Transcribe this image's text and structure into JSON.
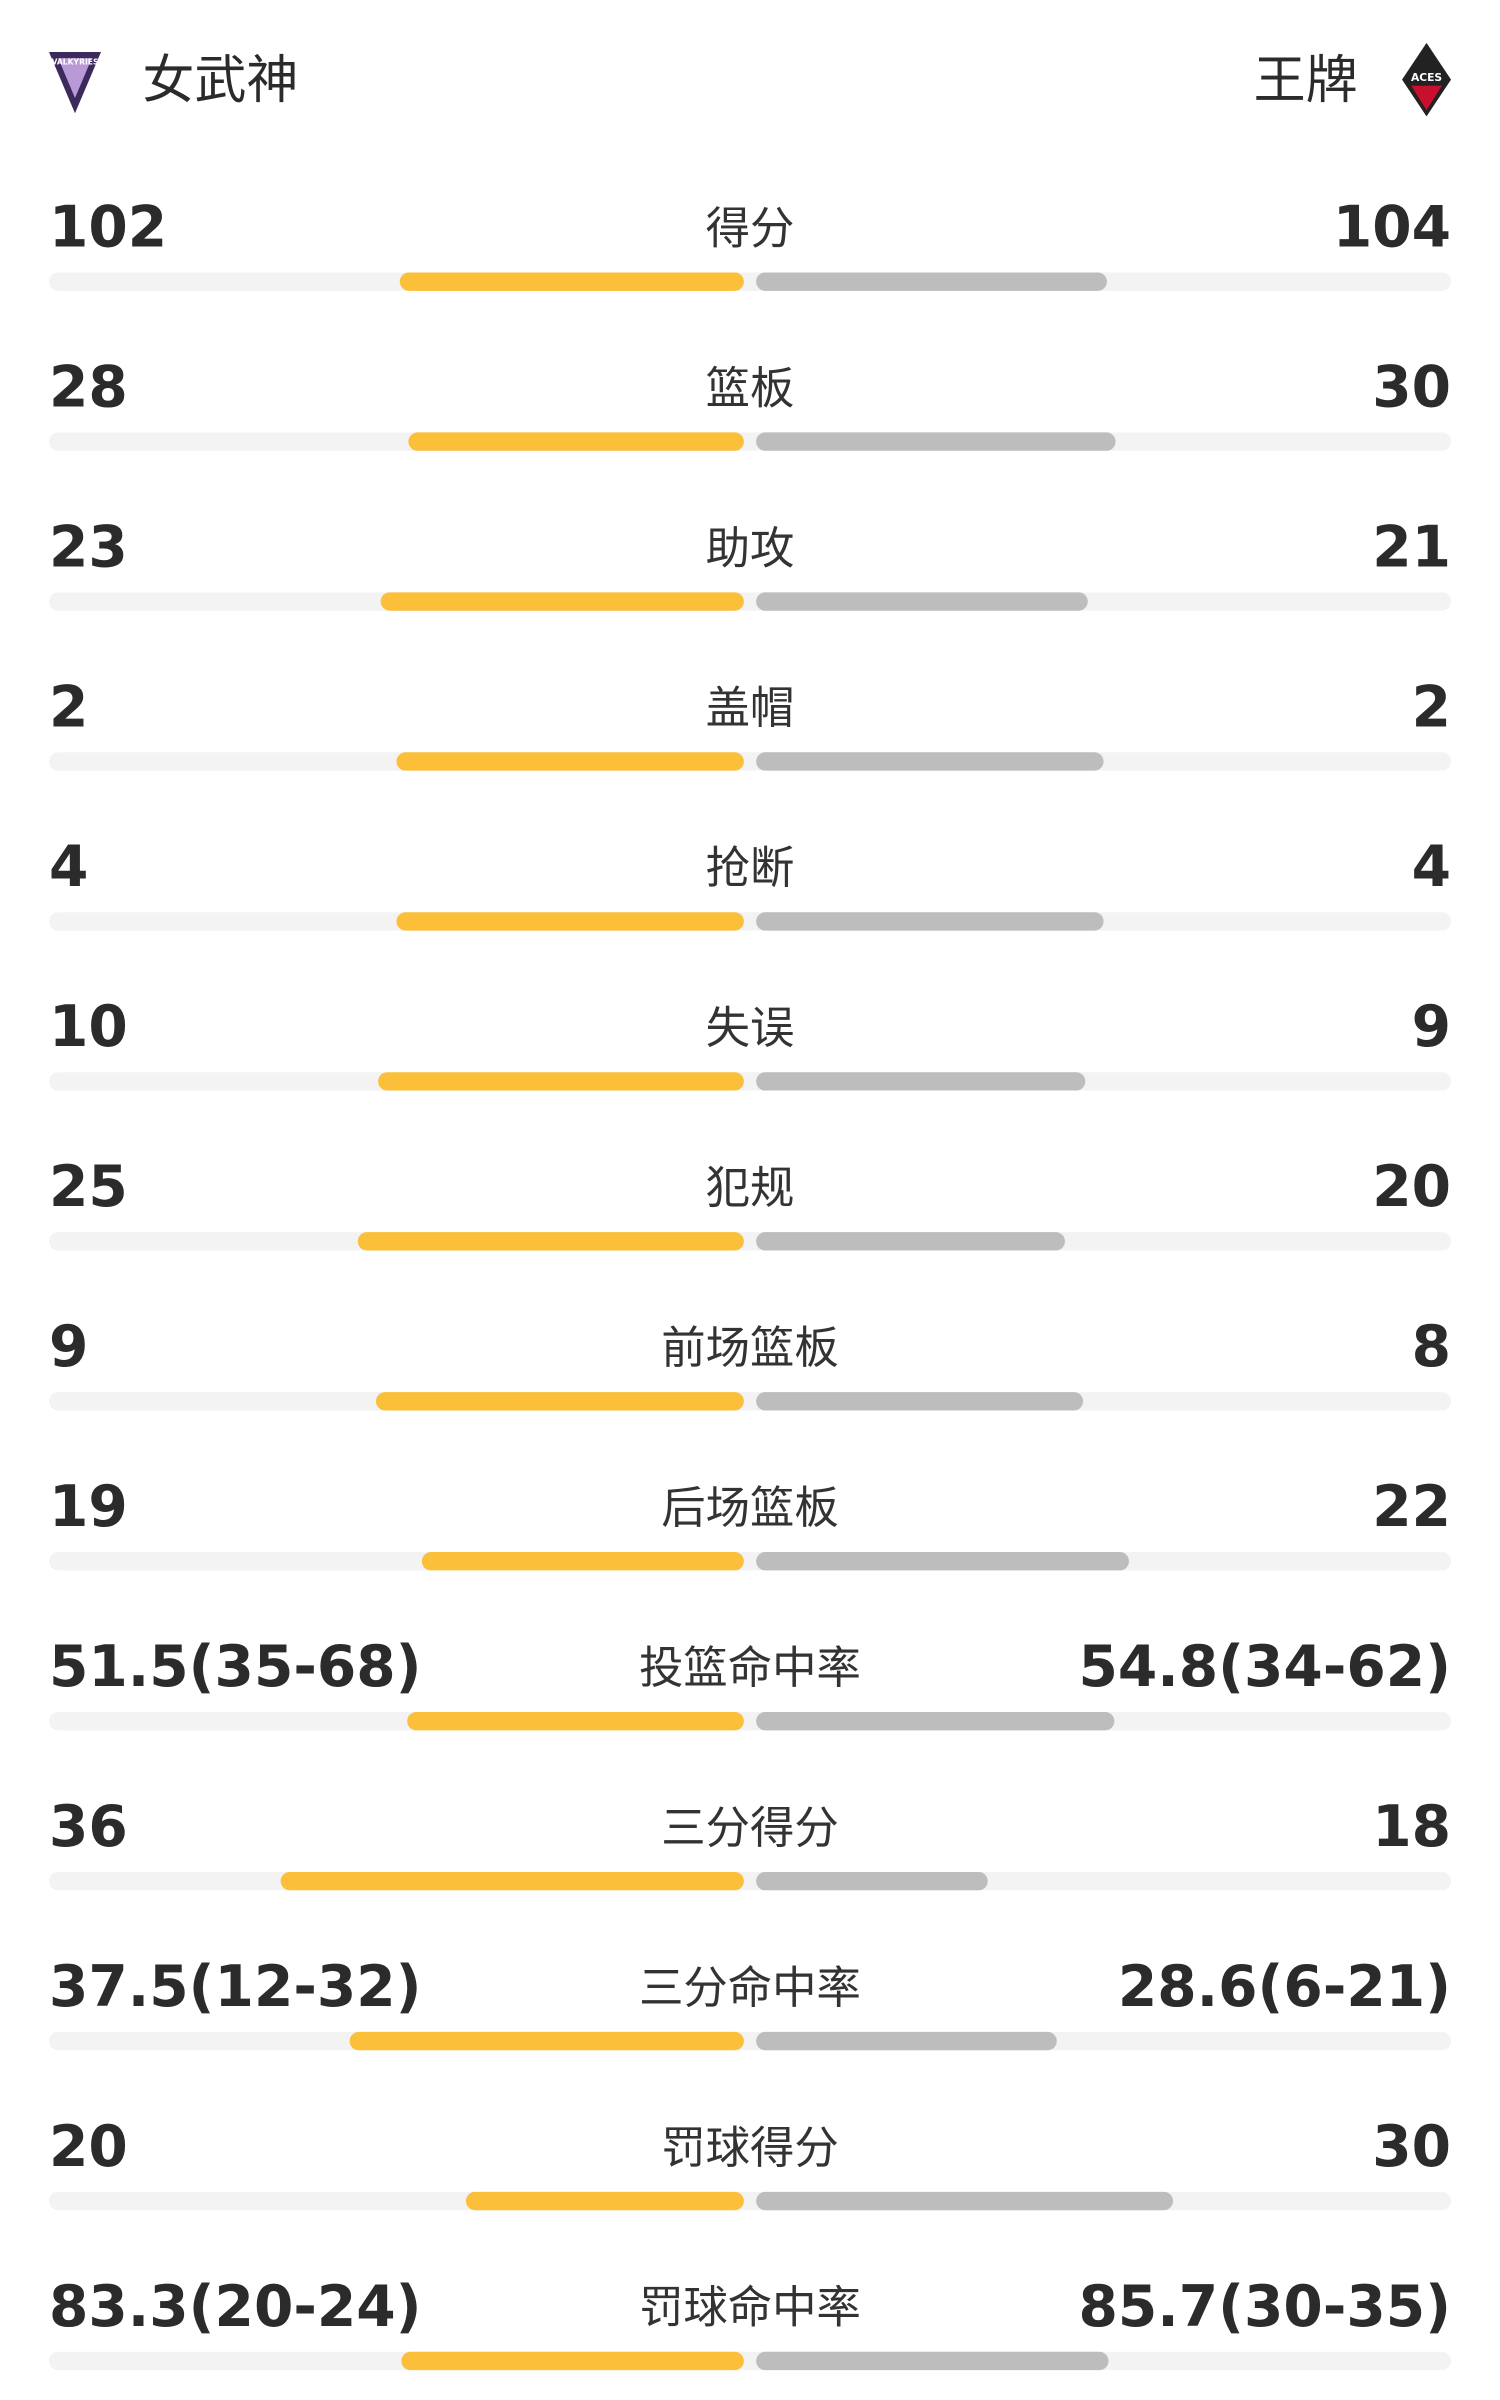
{
  "header": {
    "home_team": "女武神",
    "away_team": "王牌",
    "home_logo_text": "VALKYRIES",
    "away_logo_text": "ACES"
  },
  "stats": {
    "home_color": "#fbbf3a",
    "away_color": "#bdbdbd",
    "track_color": "#f3f3f3",
    "rows": [
      {
        "label": "得分",
        "home": 102,
        "away": 104
      },
      {
        "label": "篮板",
        "home": 28,
        "away": 30
      },
      {
        "label": "助攻",
        "home": 23,
        "away": 21
      },
      {
        "label": "盖帽",
        "home": 2,
        "away": 2
      },
      {
        "label": "抢断",
        "home": 4,
        "away": 4
      },
      {
        "label": "失误",
        "home": 10,
        "away": 9
      },
      {
        "label": "犯规",
        "home": 25,
        "away": 20
      },
      {
        "label": "前场篮板",
        "home": 9,
        "away": 8
      },
      {
        "label": "后场篮板",
        "home": 19,
        "away": 22
      },
      {
        "label": "投篮命中率",
        "home": 51.5,
        "home_label": "51.5(35-68)",
        "away": 54.8,
        "away_label": "54.8(34-62)"
      },
      {
        "label": "三分得分",
        "home": 36,
        "away": 18
      },
      {
        "label": "三分命中率",
        "home": 37.5,
        "home_label": "37.5(12-32)",
        "away": 28.6,
        "away_label": "28.6(6-21)"
      },
      {
        "label": "罚球得分",
        "home": 20,
        "away": 30
      },
      {
        "label": "罚球命中率",
        "home": 83.3,
        "home_label": "83.3(20-24)",
        "away": 85.7,
        "away_label": "85.7(30-35)"
      }
    ]
  }
}
